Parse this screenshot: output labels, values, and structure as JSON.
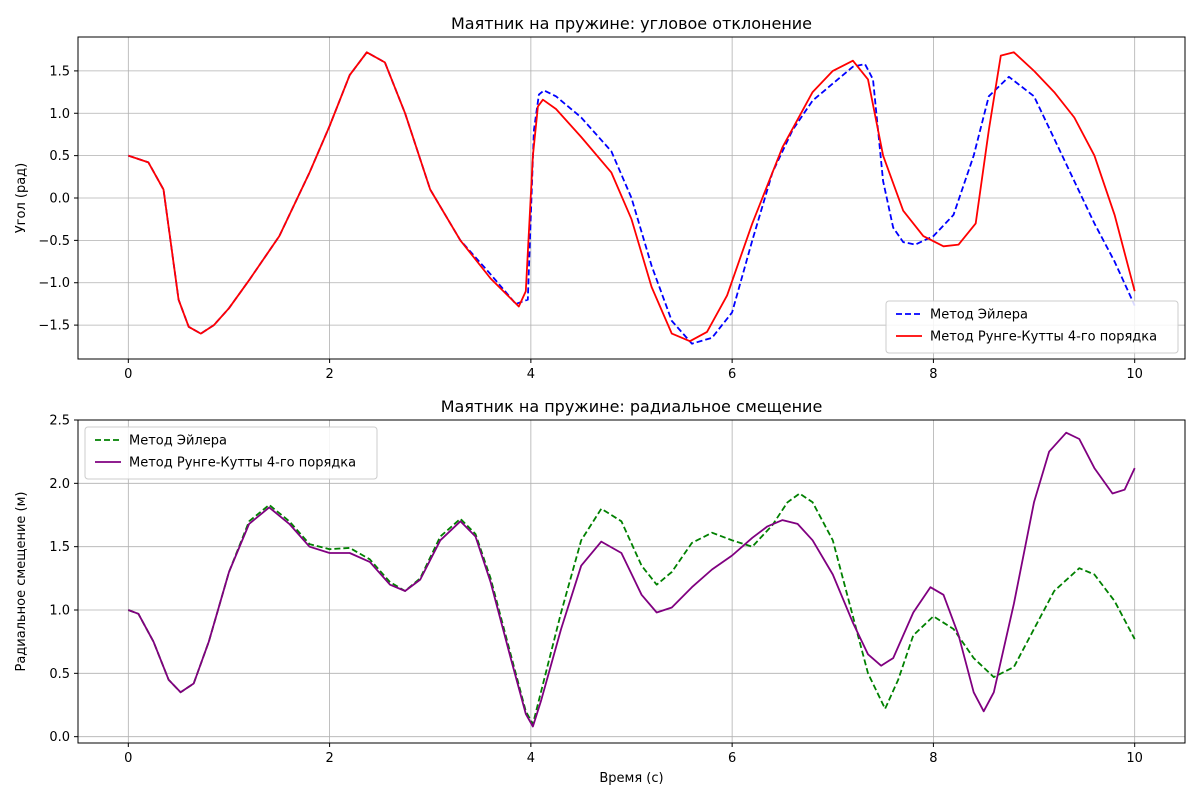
{
  "chart_data": [
    {
      "type": "line",
      "title": "Маятник на пружине: угловое отклонение",
      "xlabel": "",
      "ylabel": "Угол (рад)",
      "xlim": [
        -0.5,
        10.5
      ],
      "ylim": [
        -1.9,
        1.9
      ],
      "xticks": [
        0,
        2,
        4,
        6,
        8,
        10
      ],
      "yticks": [
        -1.5,
        -1.0,
        -0.5,
        0.0,
        0.5,
        1.0,
        1.5
      ],
      "xtick_labels": [
        "0",
        "2",
        "4",
        "6",
        "8",
        "10"
      ],
      "ytick_labels": [
        "−1.5",
        "−1.0",
        "−0.5",
        "0.0",
        "0.5",
        "1.0",
        "1.5"
      ],
      "grid": true,
      "legend": "lower-right",
      "series": [
        {
          "name": "Метод Эйлера",
          "color": "#0000ff",
          "style": "dashed",
          "x": [
            0,
            0.2,
            0.35,
            0.5,
            0.6,
            0.72,
            0.85,
            1.0,
            1.2,
            1.5,
            1.8,
            2.0,
            2.2,
            2.37,
            2.55,
            2.75,
            3.0,
            3.3,
            3.6,
            3.85,
            3.97,
            4.03,
            4.08,
            4.13,
            4.25,
            4.5,
            4.8,
            5.0,
            5.2,
            5.4,
            5.6,
            5.8,
            6.0,
            6.2,
            6.4,
            6.6,
            6.8,
            7.0,
            7.2,
            7.32,
            7.4,
            7.5,
            7.6,
            7.7,
            7.82,
            8.0,
            8.2,
            8.4,
            8.55,
            8.75,
            9.0,
            9.2,
            9.4,
            9.6,
            9.8,
            10.0
          ],
          "y": [
            0.5,
            0.42,
            0.1,
            -1.2,
            -1.52,
            -1.6,
            -1.5,
            -1.3,
            -0.97,
            -0.45,
            0.3,
            0.85,
            1.45,
            1.72,
            1.6,
            1.0,
            0.1,
            -0.5,
            -0.9,
            -1.25,
            -1.2,
            0.8,
            1.22,
            1.27,
            1.2,
            0.95,
            0.55,
            0.0,
            -0.8,
            -1.45,
            -1.72,
            -1.65,
            -1.35,
            -0.5,
            0.3,
            0.8,
            1.15,
            1.35,
            1.55,
            1.58,
            1.4,
            0.2,
            -0.35,
            -0.52,
            -0.55,
            -0.45,
            -0.2,
            0.5,
            1.2,
            1.43,
            1.2,
            0.7,
            0.2,
            -0.3,
            -0.75,
            -1.27
          ]
        },
        {
          "name": "Метод Рунге-Кутты 4-го порядка",
          "color": "#ff0000",
          "style": "solid",
          "x": [
            0,
            0.2,
            0.35,
            0.5,
            0.6,
            0.72,
            0.85,
            1.0,
            1.2,
            1.5,
            1.8,
            2.0,
            2.2,
            2.37,
            2.55,
            2.75,
            3.0,
            3.3,
            3.6,
            3.88,
            3.95,
            4.02,
            4.07,
            4.12,
            4.25,
            4.5,
            4.8,
            5.0,
            5.2,
            5.4,
            5.58,
            5.75,
            5.95,
            6.2,
            6.5,
            6.8,
            7.0,
            7.2,
            7.35,
            7.5,
            7.7,
            7.9,
            8.1,
            8.25,
            8.42,
            8.55,
            8.67,
            8.8,
            9.0,
            9.2,
            9.4,
            9.6,
            9.8,
            10.0
          ],
          "y": [
            0.5,
            0.42,
            0.1,
            -1.2,
            -1.52,
            -1.6,
            -1.5,
            -1.3,
            -0.97,
            -0.45,
            0.3,
            0.85,
            1.45,
            1.72,
            1.6,
            1.0,
            0.1,
            -0.5,
            -0.95,
            -1.28,
            -1.1,
            0.5,
            1.08,
            1.16,
            1.05,
            0.72,
            0.3,
            -0.25,
            -1.05,
            -1.6,
            -1.69,
            -1.58,
            -1.15,
            -0.3,
            0.6,
            1.25,
            1.5,
            1.62,
            1.4,
            0.5,
            -0.15,
            -0.45,
            -0.57,
            -0.55,
            -0.3,
            0.8,
            1.68,
            1.72,
            1.5,
            1.25,
            0.95,
            0.5,
            -0.2,
            -1.1
          ]
        }
      ]
    },
    {
      "type": "line",
      "title": "Маятник на пружине: радиальное смещение",
      "xlabel": "Время (с)",
      "ylabel": "Радиальное смещение (м)",
      "xlim": [
        -0.5,
        10.5
      ],
      "ylim": [
        -0.05,
        2.5
      ],
      "xticks": [
        0,
        2,
        4,
        6,
        8,
        10
      ],
      "yticks": [
        0.0,
        0.5,
        1.0,
        1.5,
        2.0,
        2.5
      ],
      "xtick_labels": [
        "0",
        "2",
        "4",
        "6",
        "8",
        "10"
      ],
      "ytick_labels": [
        "0.0",
        "0.5",
        "1.0",
        "1.5",
        "2.0",
        "2.5"
      ],
      "grid": true,
      "legend": "upper-left",
      "series": [
        {
          "name": "Метод Эйлера",
          "color": "#008000",
          "style": "dashed",
          "x": [
            0,
            0.1,
            0.25,
            0.4,
            0.52,
            0.65,
            0.8,
            1.0,
            1.2,
            1.4,
            1.6,
            1.8,
            2.0,
            2.2,
            2.4,
            2.6,
            2.75,
            2.9,
            3.1,
            3.3,
            3.45,
            3.6,
            3.8,
            3.95,
            4.02,
            4.1,
            4.3,
            4.5,
            4.7,
            4.9,
            5.1,
            5.25,
            5.4,
            5.6,
            5.8,
            6.0,
            6.2,
            6.4,
            6.55,
            6.67,
            6.8,
            7.0,
            7.2,
            7.35,
            7.52,
            7.65,
            7.8,
            8.0,
            8.2,
            8.4,
            8.6,
            8.8,
            9.0,
            9.2,
            9.45,
            9.6,
            9.8,
            10.0
          ],
          "y": [
            1.0,
            0.97,
            0.75,
            0.45,
            0.35,
            0.42,
            0.75,
            1.3,
            1.7,
            1.83,
            1.7,
            1.52,
            1.48,
            1.49,
            1.4,
            1.22,
            1.15,
            1.25,
            1.58,
            1.72,
            1.6,
            1.25,
            0.65,
            0.2,
            0.1,
            0.35,
            0.98,
            1.55,
            1.8,
            1.7,
            1.35,
            1.2,
            1.3,
            1.53,
            1.61,
            1.55,
            1.5,
            1.67,
            1.85,
            1.92,
            1.85,
            1.55,
            0.95,
            0.5,
            0.22,
            0.45,
            0.8,
            0.95,
            0.85,
            0.62,
            0.47,
            0.55,
            0.85,
            1.15,
            1.33,
            1.28,
            1.07,
            0.77
          ]
        },
        {
          "name": "Метод Рунге-Кутты 4-го порядка",
          "color": "#800080",
          "style": "solid",
          "x": [
            0,
            0.1,
            0.25,
            0.4,
            0.52,
            0.65,
            0.8,
            1.0,
            1.2,
            1.4,
            1.6,
            1.8,
            2.0,
            2.2,
            2.4,
            2.6,
            2.75,
            2.9,
            3.1,
            3.3,
            3.45,
            3.6,
            3.8,
            3.95,
            4.02,
            4.1,
            4.3,
            4.5,
            4.7,
            4.9,
            5.1,
            5.25,
            5.4,
            5.6,
            5.8,
            6.0,
            6.2,
            6.35,
            6.5,
            6.65,
            6.8,
            7.0,
            7.2,
            7.35,
            7.48,
            7.6,
            7.8,
            7.97,
            8.1,
            8.25,
            8.4,
            8.5,
            8.6,
            8.8,
            9.0,
            9.15,
            9.32,
            9.45,
            9.6,
            9.78,
            9.9,
            10.0
          ],
          "y": [
            1.0,
            0.97,
            0.75,
            0.45,
            0.35,
            0.42,
            0.75,
            1.3,
            1.68,
            1.81,
            1.68,
            1.5,
            1.45,
            1.45,
            1.38,
            1.2,
            1.15,
            1.24,
            1.55,
            1.7,
            1.58,
            1.22,
            0.62,
            0.18,
            0.08,
            0.28,
            0.85,
            1.35,
            1.54,
            1.45,
            1.12,
            0.98,
            1.02,
            1.18,
            1.32,
            1.43,
            1.57,
            1.66,
            1.71,
            1.68,
            1.55,
            1.28,
            0.9,
            0.65,
            0.56,
            0.62,
            0.98,
            1.18,
            1.12,
            0.8,
            0.35,
            0.2,
            0.35,
            1.05,
            1.85,
            2.25,
            2.4,
            2.35,
            2.12,
            1.92,
            1.95,
            2.12
          ]
        }
      ]
    }
  ]
}
